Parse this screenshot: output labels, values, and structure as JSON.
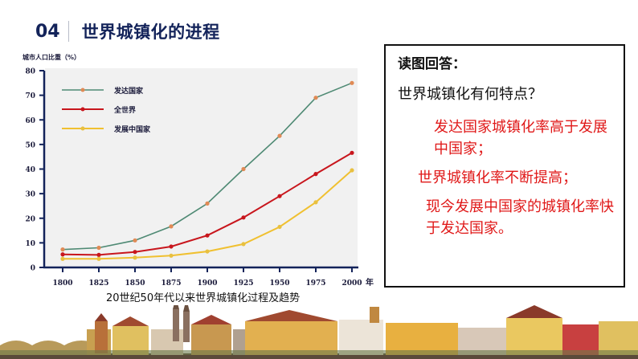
{
  "header": {
    "number": "04",
    "title": "世界城镇化的进程"
  },
  "chart_data": {
    "type": "line",
    "title": "20世纪50年代以来世界城镇化过程及趋势",
    "ylabel": "城市人口比重（%）",
    "xlabel": "年",
    "x": [
      1800,
      1825,
      1850,
      1875,
      1900,
      1925,
      1950,
      1975,
      2000
    ],
    "ylim": [
      0,
      80
    ],
    "yticks": [
      0,
      10,
      20,
      30,
      40,
      50,
      60,
      70,
      80
    ],
    "grid": false,
    "legend_position": "upper-left-inside",
    "series": [
      {
        "name": "发达国家",
        "color": "#4f8a74",
        "marker_color": "#e08a55",
        "values": [
          7.3,
          8,
          11,
          16.7,
          26,
          40,
          53.5,
          69,
          75
        ]
      },
      {
        "name": "全世界",
        "color": "#c8161d",
        "marker_color": "#c8161d",
        "values": [
          5.3,
          5.1,
          6.3,
          8.5,
          13,
          20.3,
          29,
          38,
          46.6
        ]
      },
      {
        "name": "发展中国家",
        "color": "#f0c030",
        "marker_color": "#e8c040",
        "values": [
          3.5,
          3.5,
          4,
          4.8,
          6.5,
          9.5,
          16.5,
          26.5,
          39.5
        ]
      }
    ]
  },
  "chart": {
    "ylabel": "城市人口比重（%）",
    "x_unit": "年",
    "caption": "20世纪50年代以来世界城镇化过程及趋势",
    "legend": [
      "发达国家",
      "全世界",
      "发展中国家"
    ]
  },
  "qa": {
    "heading": "读图回答：",
    "question": "世界城镇化有何特点？",
    "answers": [
      "发达国家城镇化率高于发展中国家；",
      "世界城镇化率不断提高；",
      "现今发展中国家的城镇化率快于发达国家。"
    ]
  },
  "colors": {
    "title": "#13235a",
    "answer": "#e01818",
    "plot_bg": "#f1f1f1",
    "axis": "#13235a"
  }
}
